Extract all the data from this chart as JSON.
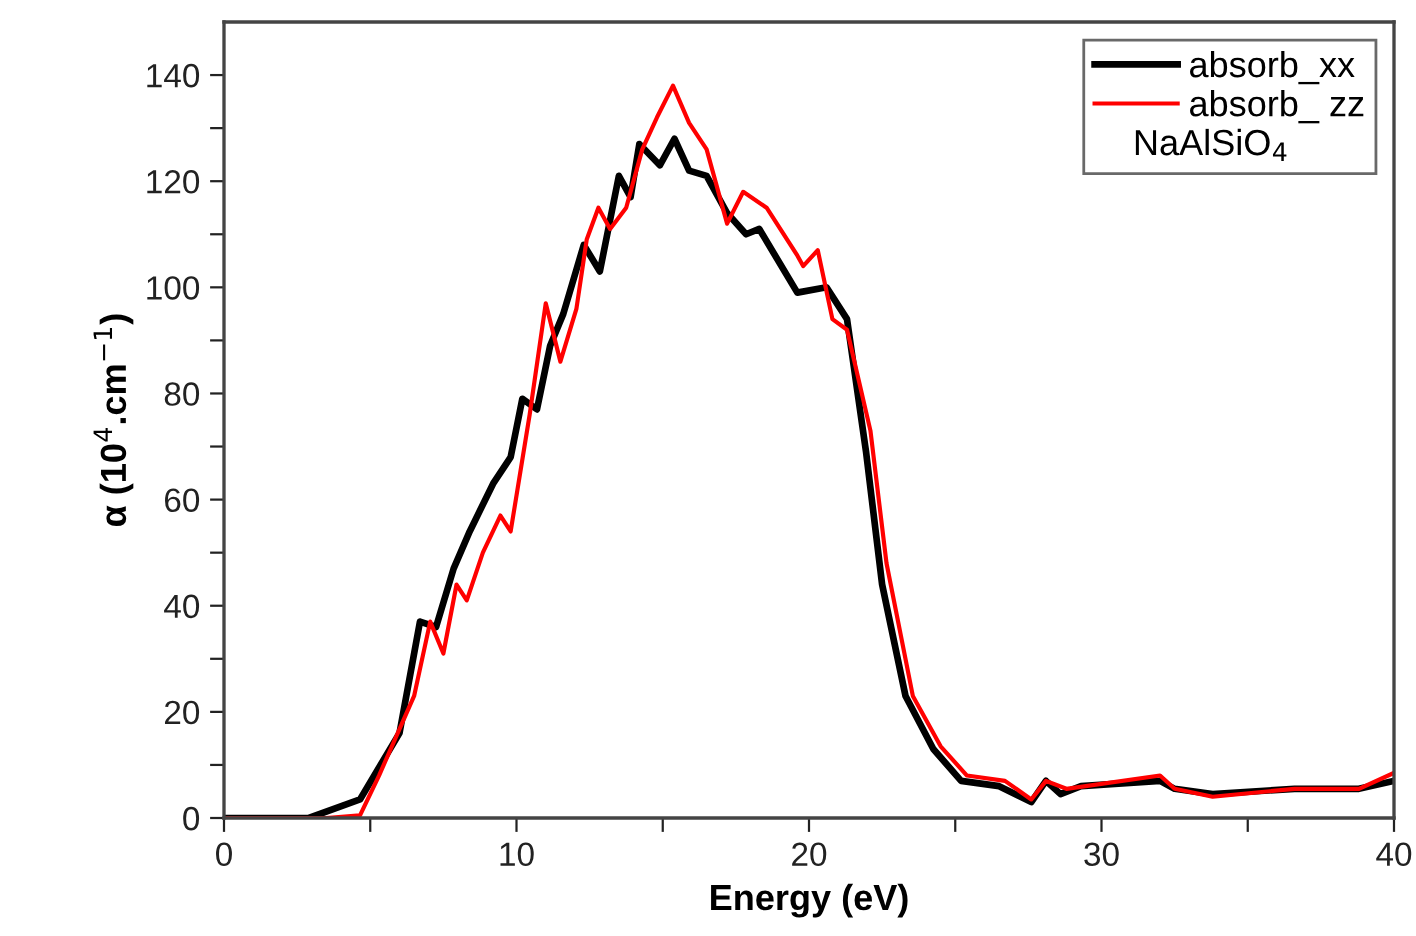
{
  "chart_data": {
    "type": "line",
    "xlabel": "Energy (eV)",
    "ylabel": "α (10$^{4}$.cm$^{−1}$)",
    "xlim": [
      0,
      40
    ],
    "ylim": [
      0,
      150
    ],
    "xticks": [
      0,
      {
        "value": 5,
        "label": null
      },
      10,
      {
        "value": 15,
        "label": null
      },
      20,
      {
        "value": 25,
        "label": null
      },
      30,
      {
        "value": 35,
        "label": null
      },
      40
    ],
    "yticks": [
      0,
      {
        "value": 10,
        "label": null
      },
      20,
      {
        "value": 30,
        "label": null
      },
      40,
      {
        "value": 50,
        "label": null
      },
      60,
      {
        "value": 70,
        "label": null
      },
      80,
      {
        "value": 90,
        "label": null
      },
      100,
      {
        "value": 110,
        "label": null
      },
      120,
      {
        "value": 130,
        "label": null
      },
      140
    ],
    "grid": false,
    "legend": "top right",
    "marker": "none",
    "line_style": "solid",
    "annotations": [
      "NaAlSiO$_{4}$"
    ],
    "series": [
      {
        "name": "absorb_xx",
        "color": "#000000",
        "x": [
          0,
          2.9,
          4.65,
          6.0,
          6.7,
          7.25,
          7.85,
          8.4,
          9.2,
          9.8,
          10.2,
          10.7,
          11.15,
          11.6,
          12.3,
          12.85,
          13.5,
          13.9,
          14.2,
          14.9,
          15.4,
          15.9,
          16.5,
          17.2,
          17.85,
          18.3,
          19.6,
          20.6,
          21.3,
          21.95,
          22.5,
          23.3,
          24.25,
          25.2,
          26.5,
          27.6,
          28.1,
          28.6,
          29.3,
          32,
          32.5,
          33.8,
          36.6,
          38.8,
          40
        ],
        "values": [
          0,
          0,
          3.5,
          16,
          37,
          36,
          47,
          54,
          63,
          68,
          79,
          77,
          89,
          95,
          108,
          103,
          121,
          117,
          127,
          123,
          128,
          122,
          121,
          114,
          110,
          111,
          99,
          100,
          94,
          69,
          44,
          23,
          13,
          7,
          6,
          3,
          7,
          4.5,
          6,
          7,
          5.5,
          4.5,
          5.5,
          5.5,
          7
        ]
      },
      {
        "name": "absorb_ zz",
        "color": "#ff0000",
        "x": [
          0,
          3.5,
          4.65,
          5.3,
          6.5,
          7.05,
          7.5,
          7.95,
          8.3,
          8.85,
          9.45,
          9.8,
          10.45,
          11.0,
          11.5,
          12.05,
          12.4,
          12.8,
          13.2,
          13.75,
          14.3,
          14.8,
          15.35,
          15.9,
          16.5,
          17.2,
          17.75,
          18.55,
          19.6,
          19.8,
          20.3,
          20.8,
          21.3,
          22.1,
          22.65,
          23.55,
          24.5,
          25.4,
          26.7,
          27.6,
          28.1,
          28.8,
          32,
          32.5,
          33.8,
          36.6,
          38.8,
          40
        ],
        "values": [
          0,
          0,
          0.5,
          8,
          23,
          37,
          31,
          44,
          41,
          50,
          57,
          54,
          76,
          97,
          86,
          96,
          109,
          115,
          111,
          115,
          126,
          132,
          138,
          131,
          126,
          112,
          118,
          115,
          106,
          104,
          107,
          94,
          92,
          73,
          48,
          23,
          13.5,
          8,
          7,
          3.5,
          7,
          5.5,
          8,
          5.5,
          4,
          5.5,
          5.5,
          8.5
        ]
      }
    ]
  }
}
